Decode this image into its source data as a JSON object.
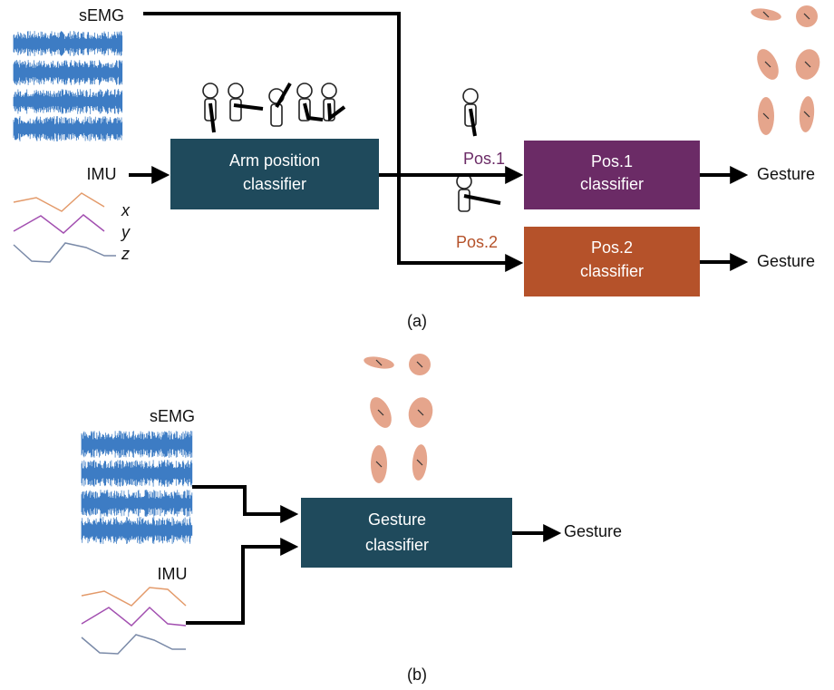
{
  "panel_a": {
    "semg_label": "sEMG",
    "imu_label": "IMU",
    "imu_axes": [
      "x",
      "y",
      "z"
    ],
    "position_classifier": [
      "Arm position",
      "classifier"
    ],
    "branches": [
      {
        "position": "Pos.1",
        "classifier": [
          "Pos.1",
          "classifier"
        ],
        "output": "Gesture"
      },
      {
        "position": "Pos.2",
        "classifier": [
          "Pos.2",
          "classifier"
        ],
        "output": "Gesture"
      }
    ],
    "caption": "(a)"
  },
  "panel_b": {
    "semg_label": "sEMG",
    "imu_label": "IMU",
    "classifier": [
      "Gesture",
      "classifier"
    ],
    "output": "Gesture",
    "caption": "(b)"
  }
}
